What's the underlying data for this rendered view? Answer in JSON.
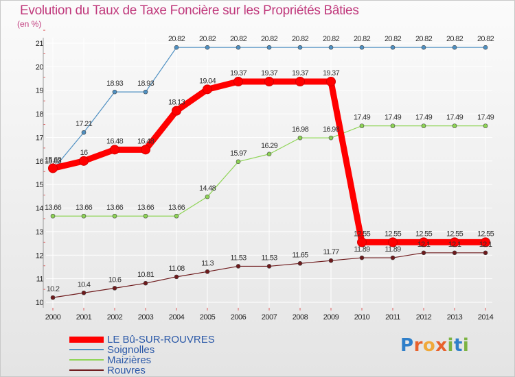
{
  "title": "Evolution du Taux de Taxe Foncière sur les Propriétés Bâties",
  "subtitle": "(en %)",
  "logo": {
    "letters": [
      "P",
      "r",
      "o",
      "x",
      "i",
      "t",
      "i"
    ],
    "colors": [
      "#2f7fc9",
      "#e8612c",
      "#f0a93a",
      "#e8612c",
      "#7cb342",
      "#2f7fc9",
      "#7cb342"
    ]
  },
  "colors": {
    "le_bu": "#ff0000",
    "soignolles": "#4f90c2",
    "maizieres": "#8ed455",
    "rouvres": "#6e1a1c",
    "grid": "#ffffff",
    "axis_red": "#e06060"
  },
  "chart_data": {
    "type": "line",
    "title": "Evolution du Taux de Taxe Foncière sur les Propriétés Bâties",
    "ylabel": "(en %)",
    "xlabel": "",
    "x": [
      2000,
      2001,
      2002,
      2003,
      2004,
      2005,
      2006,
      2007,
      2008,
      2009,
      2010,
      2011,
      2012,
      2013,
      2014
    ],
    "ylim": [
      10,
      21
    ],
    "yticks": [
      10,
      11,
      12,
      13,
      14,
      15,
      16,
      17,
      18,
      19,
      20,
      21
    ],
    "grid": true,
    "legend_position": "bottom-left",
    "series": [
      {
        "name": "LE Bû-SUR-ROUVRES",
        "key": "le_bu",
        "values": [
          15.69,
          16,
          16.48,
          16.48,
          18.13,
          19.04,
          19.37,
          19.37,
          19.37,
          19.37,
          12.55,
          12.55,
          12.55,
          12.55,
          12.55
        ],
        "labels": [
          "15.69",
          "16",
          "16.48",
          "16.48",
          "18.13",
          "19.04",
          "19.37",
          "19.37",
          "19.37",
          "19.37",
          "12.55",
          "12.55",
          "12.55",
          "12.55",
          "12.55"
        ]
      },
      {
        "name": "Soignolles",
        "key": "soignolles",
        "values": [
          15.63,
          17.21,
          18.93,
          18.93,
          20.82,
          20.82,
          20.82,
          20.82,
          20.82,
          20.82,
          20.82,
          20.82,
          20.82,
          20.82,
          20.82
        ],
        "labels": [
          "15.63",
          "17.21",
          "18.93",
          "18.93",
          "20.82",
          "20.82",
          "20.82",
          "20.82",
          "20.82",
          "20.82",
          "20.82",
          "20.82",
          "20.82",
          "20.82",
          "20.82"
        ]
      },
      {
        "name": "Maizières",
        "key": "maizieres",
        "values": [
          13.66,
          13.66,
          13.66,
          13.66,
          13.66,
          14.48,
          15.97,
          16.29,
          16.98,
          16.98,
          17.49,
          17.49,
          17.49,
          17.49,
          17.49
        ],
        "labels": [
          "13.66",
          "13.66",
          "13.66",
          "13.66",
          "13.66",
          "14.48",
          "15.97",
          "16.29",
          "16.98",
          "16.98",
          "17.49",
          "17.49",
          "17.49",
          "17.49",
          "17.49"
        ]
      },
      {
        "name": "Rouvres",
        "key": "rouvres",
        "values": [
          10.2,
          10.4,
          10.6,
          10.81,
          11.08,
          11.3,
          11.53,
          11.53,
          11.65,
          11.77,
          11.89,
          11.89,
          12.1,
          12.1,
          12.1
        ],
        "labels": [
          "10.2",
          "10.4",
          "10.6",
          "10.81",
          "11.08",
          "11.3",
          "11.53",
          "11.53",
          "11.65",
          "11.77",
          "11.89",
          "11.89",
          "12.1",
          "12.1",
          "12.1"
        ]
      }
    ]
  }
}
